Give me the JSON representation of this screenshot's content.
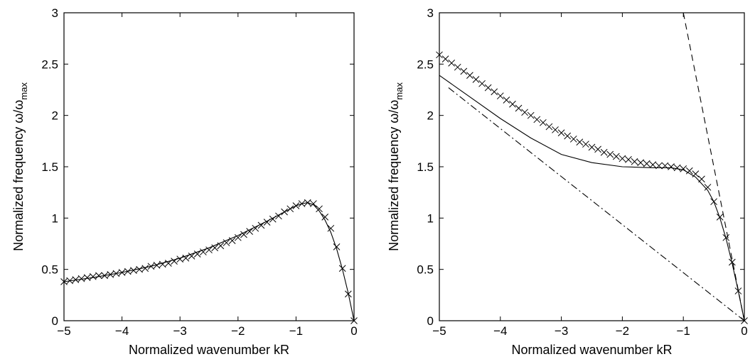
{
  "chart_data": [
    {
      "type": "line",
      "title": "",
      "xlabel": "Normalized wavenumber kR",
      "ylabel": "Normalized frequency ω/ω",
      "ylabel_sub": "max",
      "xlim": [
        -5,
        0
      ],
      "ylim": [
        0,
        3
      ],
      "xticks": [
        -5,
        -4,
        -3,
        -2,
        -1,
        0
      ],
      "yticks": [
        0,
        0.5,
        1,
        1.5,
        2,
        2.5,
        3
      ],
      "xtick_labels": [
        "−5",
        "−4",
        "−3",
        "−2",
        "−1",
        "0"
      ],
      "ytick_labels": [
        "0",
        "0.5",
        "1",
        "1.5",
        "2",
        "2.5",
        "3"
      ],
      "grid": false,
      "series": [
        {
          "style": "solid",
          "points": [
            [
              -5,
              0.38
            ],
            [
              -4.5,
              0.42
            ],
            [
              -4,
              0.47
            ],
            [
              -3.5,
              0.53
            ],
            [
              -3,
              0.61
            ],
            [
              -2.5,
              0.71
            ],
            [
              -2,
              0.83
            ],
            [
              -1.5,
              0.97
            ],
            [
              -1.2,
              1.06
            ],
            [
              -1,
              1.12
            ],
            [
              -0.9,
              1.14
            ],
            [
              -0.8,
              1.15
            ],
            [
              -0.7,
              1.13
            ],
            [
              -0.6,
              1.07
            ],
            [
              -0.5,
              0.98
            ],
            [
              -0.4,
              0.86
            ],
            [
              -0.3,
              0.7
            ],
            [
              -0.2,
              0.5
            ],
            [
              -0.1,
              0.27
            ],
            [
              0,
              0
            ]
          ]
        },
        {
          "style": "x-markers",
          "points": [
            [
              -5,
              0.38
            ],
            [
              -4.9,
              0.39
            ],
            [
              -4.8,
              0.4
            ],
            [
              -4.7,
              0.41
            ],
            [
              -4.6,
              0.42
            ],
            [
              -4.5,
              0.43
            ],
            [
              -4.4,
              0.44
            ],
            [
              -4.3,
              0.44
            ],
            [
              -4.2,
              0.45
            ],
            [
              -4.1,
              0.46
            ],
            [
              -4,
              0.47
            ],
            [
              -3.9,
              0.48
            ],
            [
              -3.8,
              0.49
            ],
            [
              -3.7,
              0.5
            ],
            [
              -3.6,
              0.51
            ],
            [
              -3.5,
              0.53
            ],
            [
              -3.4,
              0.54
            ],
            [
              -3.3,
              0.55
            ],
            [
              -3.2,
              0.56
            ],
            [
              -3.1,
              0.58
            ],
            [
              -3,
              0.6
            ],
            [
              -2.9,
              0.61
            ],
            [
              -2.8,
              0.63
            ],
            [
              -2.7,
              0.65
            ],
            [
              -2.6,
              0.67
            ],
            [
              -2.5,
              0.69
            ],
            [
              -2.4,
              0.71
            ],
            [
              -2.3,
              0.73
            ],
            [
              -2.2,
              0.76
            ],
            [
              -2.1,
              0.78
            ],
            [
              -2,
              0.81
            ],
            [
              -1.9,
              0.84
            ],
            [
              -1.8,
              0.87
            ],
            [
              -1.7,
              0.9
            ],
            [
              -1.6,
              0.93
            ],
            [
              -1.5,
              0.96
            ],
            [
              -1.4,
              0.99
            ],
            [
              -1.3,
              1.02
            ],
            [
              -1.2,
              1.06
            ],
            [
              -1.1,
              1.09
            ],
            [
              -1,
              1.12
            ],
            [
              -0.9,
              1.14
            ],
            [
              -0.8,
              1.15
            ],
            [
              -0.7,
              1.14
            ],
            [
              -0.6,
              1.09
            ],
            [
              -0.5,
              1.01
            ],
            [
              -0.4,
              0.9
            ],
            [
              -0.3,
              0.72
            ],
            [
              -0.2,
              0.51
            ],
            [
              -0.1,
              0.26
            ],
            [
              0,
              0
            ]
          ]
        }
      ]
    },
    {
      "type": "line",
      "title": "",
      "xlabel": "Normalized wavenumber kR",
      "ylabel": "Normalized frequency ω/ω",
      "ylabel_sub": "max",
      "xlim": [
        -5,
        0
      ],
      "ylim": [
        0,
        3
      ],
      "xticks": [
        -5,
        -4,
        -3,
        -2,
        -1,
        0
      ],
      "yticks": [
        0,
        0.5,
        1,
        1.5,
        2,
        2.5,
        3
      ],
      "xtick_labels": [
        "−5",
        "−4",
        "−3",
        "−2",
        "−1",
        "0"
      ],
      "ytick_labels": [
        "0",
        "0.5",
        "1",
        "1.5",
        "2",
        "2.5",
        "3"
      ],
      "grid": false,
      "series": [
        {
          "style": "solid",
          "points": [
            [
              -5,
              2.39
            ],
            [
              -4.5,
              2.18
            ],
            [
              -4,
              1.97
            ],
            [
              -3.5,
              1.78
            ],
            [
              -3,
              1.62
            ],
            [
              -2.5,
              1.54
            ],
            [
              -2,
              1.5
            ],
            [
              -1.5,
              1.49
            ],
            [
              -1.2,
              1.49
            ],
            [
              -1,
              1.47
            ],
            [
              -0.8,
              1.4
            ],
            [
              -0.6,
              1.27
            ],
            [
              -0.5,
              1.16
            ],
            [
              -0.4,
              1.0
            ],
            [
              -0.3,
              0.8
            ],
            [
              -0.2,
              0.56
            ],
            [
              -0.1,
              0.29
            ],
            [
              0,
              0
            ]
          ]
        },
        {
          "style": "x-markers",
          "points": [
            [
              -5,
              2.59
            ],
            [
              -4.9,
              2.55
            ],
            [
              -4.8,
              2.51
            ],
            [
              -4.7,
              2.47
            ],
            [
              -4.6,
              2.43
            ],
            [
              -4.5,
              2.39
            ],
            [
              -4.4,
              2.35
            ],
            [
              -4.3,
              2.31
            ],
            [
              -4.2,
              2.27
            ],
            [
              -4.1,
              2.23
            ],
            [
              -4,
              2.19
            ],
            [
              -3.9,
              2.15
            ],
            [
              -3.8,
              2.11
            ],
            [
              -3.7,
              2.07
            ],
            [
              -3.6,
              2.03
            ],
            [
              -3.5,
              2.0
            ],
            [
              -3.4,
              1.96
            ],
            [
              -3.3,
              1.93
            ],
            [
              -3.2,
              1.89
            ],
            [
              -3.1,
              1.86
            ],
            [
              -3,
              1.83
            ],
            [
              -2.9,
              1.8
            ],
            [
              -2.8,
              1.77
            ],
            [
              -2.7,
              1.74
            ],
            [
              -2.6,
              1.72
            ],
            [
              -2.5,
              1.69
            ],
            [
              -2.4,
              1.67
            ],
            [
              -2.3,
              1.64
            ],
            [
              -2.2,
              1.62
            ],
            [
              -2.1,
              1.6
            ],
            [
              -2,
              1.58
            ],
            [
              -1.9,
              1.57
            ],
            [
              -1.8,
              1.55
            ],
            [
              -1.7,
              1.54
            ],
            [
              -1.6,
              1.53
            ],
            [
              -1.5,
              1.52
            ],
            [
              -1.4,
              1.51
            ],
            [
              -1.3,
              1.51
            ],
            [
              -1.2,
              1.5
            ],
            [
              -1.1,
              1.49
            ],
            [
              -1,
              1.48
            ],
            [
              -0.9,
              1.46
            ],
            [
              -0.8,
              1.43
            ],
            [
              -0.7,
              1.38
            ],
            [
              -0.6,
              1.3
            ],
            [
              -0.5,
              1.16
            ],
            [
              -0.4,
              1.01
            ],
            [
              -0.3,
              0.81
            ],
            [
              -0.2,
              0.57
            ],
            [
              -0.1,
              0.29
            ],
            [
              0,
              0
            ]
          ]
        },
        {
          "style": "dashed",
          "points": [
            [
              -1,
              3.0
            ],
            [
              0,
              0
            ]
          ]
        },
        {
          "style": "dash-dot",
          "points": [
            [
              -4.85,
              2.27
            ],
            [
              0,
              0
            ]
          ]
        }
      ]
    }
  ]
}
